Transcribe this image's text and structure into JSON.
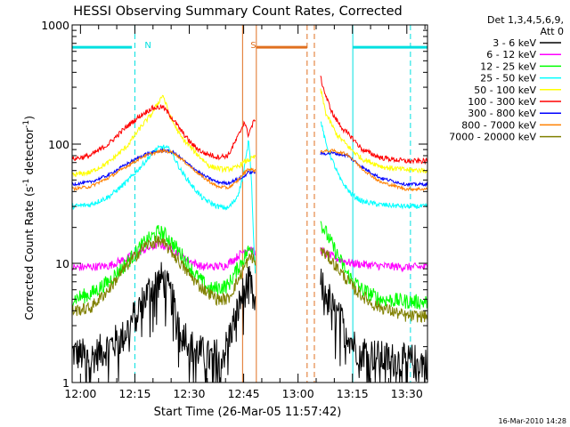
{
  "chart_data": {
    "type": "line",
    "title": "HESSI Observing Summary Count Rates, Corrected",
    "xlabel": "Start Time (26-Mar-05 11:57:42)",
    "ylabel_main": "Corrected Count Rate (s",
    "ylabel_sup1": "-1",
    "ylabel_mid": " detector",
    "ylabel_sup2": "-1",
    "ylabel_end": ")",
    "footer": "16-Mar-2010 14:28",
    "legend_header": [
      "Det 1,3,4,5,6,9,",
      "Att 0"
    ],
    "x_range_min": [
      0,
      98
    ],
    "y_range": [
      1,
      1000
    ],
    "y_scale": "log",
    "x_ticks": [
      {
        "t": 2.3,
        "label": "12:00"
      },
      {
        "t": 17.3,
        "label": "12:15"
      },
      {
        "t": 32.3,
        "label": "12:30"
      },
      {
        "t": 47.3,
        "label": "12:45"
      },
      {
        "t": 62.3,
        "label": "13:00"
      },
      {
        "t": 77.3,
        "label": "13:15"
      },
      {
        "t": 92.3,
        "label": "13:30"
      }
    ],
    "y_ticks": [
      {
        "v": 1,
        "label": "1"
      },
      {
        "v": 10,
        "label": "10"
      },
      {
        "v": 100,
        "label": "100"
      },
      {
        "v": 1000,
        "label": "1000"
      }
    ],
    "data_gap": [
      50.5,
      68.5
    ],
    "series": [
      {
        "name": "3 - 6 keV",
        "color": "#000000",
        "noise": 0.35,
        "points": [
          [
            0,
            1.8
          ],
          [
            5,
            1.6
          ],
          [
            10,
            2.0
          ],
          [
            14,
            2.4
          ],
          [
            18,
            4.0
          ],
          [
            22,
            6.5
          ],
          [
            25,
            7.5
          ],
          [
            27,
            5.5
          ],
          [
            30,
            3.0
          ],
          [
            33,
            2.0
          ],
          [
            38,
            1.6
          ],
          [
            42,
            1.8
          ],
          [
            45,
            3.5
          ],
          [
            47,
            5.5
          ],
          [
            49,
            7.0
          ],
          [
            50.5,
            4.0
          ],
          [
            68.5,
            6.5
          ],
          [
            70,
            6.0
          ],
          [
            72,
            4.0
          ],
          [
            75,
            3.0
          ],
          [
            78,
            2.0
          ],
          [
            85,
            1.6
          ],
          [
            92,
            1.5
          ],
          [
            98,
            1.5
          ]
        ]
      },
      {
        "name": "6 - 12 keV",
        "color": "#ff00ff",
        "noise": 0.08,
        "points": [
          [
            0,
            9.2
          ],
          [
            10,
            9.5
          ],
          [
            15,
            11.0
          ],
          [
            20,
            13.0
          ],
          [
            24,
            14.5
          ],
          [
            27,
            13.5
          ],
          [
            31,
            11.0
          ],
          [
            36,
            9.3
          ],
          [
            42,
            9.5
          ],
          [
            45,
            11.0
          ],
          [
            47,
            12.5
          ],
          [
            49,
            13.5
          ],
          [
            50.5,
            12.0
          ],
          [
            68.5,
            13.0
          ],
          [
            70,
            12.0
          ],
          [
            73,
            11.0
          ],
          [
            77,
            10.0
          ],
          [
            85,
            9.5
          ],
          [
            92,
            9.3
          ],
          [
            98,
            9.3
          ]
        ]
      },
      {
        "name": "12 - 25 keV",
        "color": "#00ff00",
        "noise": 0.15,
        "points": [
          [
            0,
            5.0
          ],
          [
            5,
            5.5
          ],
          [
            10,
            7.0
          ],
          [
            15,
            10.0
          ],
          [
            20,
            15.0
          ],
          [
            24,
            18.5
          ],
          [
            26,
            17.0
          ],
          [
            30,
            12.0
          ],
          [
            34,
            8.0
          ],
          [
            38,
            6.0
          ],
          [
            43,
            6.5
          ],
          [
            46,
            9.5
          ],
          [
            48,
            12.0
          ],
          [
            49.5,
            14.0
          ],
          [
            50.5,
            11.0
          ],
          [
            68.5,
            22.0
          ],
          [
            70,
            18.0
          ],
          [
            73,
            12.0
          ],
          [
            76,
            8.0
          ],
          [
            80,
            6.0
          ],
          [
            85,
            5.0
          ],
          [
            92,
            4.8
          ],
          [
            98,
            4.7
          ]
        ]
      },
      {
        "name": "25 - 50 keV",
        "color": "#00ffff",
        "noise": 0.05,
        "points": [
          [
            0,
            30
          ],
          [
            5,
            31
          ],
          [
            10,
            36
          ],
          [
            15,
            48
          ],
          [
            19,
            65
          ],
          [
            23,
            90
          ],
          [
            25,
            95
          ],
          [
            27,
            90
          ],
          [
            30,
            60
          ],
          [
            33,
            45
          ],
          [
            36,
            35
          ],
          [
            40,
            30
          ],
          [
            43,
            29
          ],
          [
            45,
            34
          ],
          [
            46,
            40
          ],
          [
            47,
            52
          ],
          [
            48,
            78
          ],
          [
            48.7,
            110
          ],
          [
            49.4,
            55
          ],
          [
            50.0,
            18
          ],
          [
            50.5,
            8
          ],
          [
            68.5,
            160
          ],
          [
            70,
            100
          ],
          [
            72,
            70
          ],
          [
            74,
            50
          ],
          [
            77,
            38
          ],
          [
            80,
            33
          ],
          [
            85,
            31
          ],
          [
            92,
            30
          ],
          [
            98,
            30
          ]
        ]
      },
      {
        "name": "50 - 100 keV",
        "color": "#ffff00",
        "noise": 0.05,
        "points": [
          [
            0,
            55
          ],
          [
            5,
            58
          ],
          [
            10,
            70
          ],
          [
            15,
            95
          ],
          [
            19,
            140
          ],
          [
            22,
            180
          ],
          [
            25,
            260
          ],
          [
            27,
            170
          ],
          [
            30,
            115
          ],
          [
            34,
            85
          ],
          [
            38,
            65
          ],
          [
            42,
            61
          ],
          [
            45,
            63
          ],
          [
            48,
            72
          ],
          [
            50.5,
            78
          ],
          [
            68.5,
            290
          ],
          [
            70,
            180
          ],
          [
            73,
            120
          ],
          [
            77,
            90
          ],
          [
            80,
            75
          ],
          [
            86,
            64
          ],
          [
            92,
            61
          ],
          [
            98,
            60
          ]
        ]
      },
      {
        "name": "100 - 300 keV",
        "color": "#ff0000",
        "noise": 0.05,
        "points": [
          [
            0,
            75
          ],
          [
            5,
            80
          ],
          [
            10,
            100
          ],
          [
            15,
            140
          ],
          [
            19,
            175
          ],
          [
            22,
            200
          ],
          [
            25,
            205
          ],
          [
            27,
            175
          ],
          [
            30,
            130
          ],
          [
            33,
            100
          ],
          [
            36,
            85
          ],
          [
            40,
            78
          ],
          [
            43,
            80
          ],
          [
            46,
            120
          ],
          [
            47.5,
            155
          ],
          [
            48.5,
            120
          ],
          [
            49.5,
            140
          ],
          [
            50.5,
            165
          ],
          [
            68.5,
            360
          ],
          [
            70,
            250
          ],
          [
            72,
            175
          ],
          [
            75,
            130
          ],
          [
            77,
            115
          ],
          [
            80,
            90
          ],
          [
            85,
            77
          ],
          [
            92,
            72
          ],
          [
            98,
            72
          ]
        ]
      },
      {
        "name": "300 - 800 keV",
        "color": "#0000ff",
        "noise": 0.03,
        "points": [
          [
            0,
            46
          ],
          [
            5,
            48
          ],
          [
            10,
            55
          ],
          [
            15,
            68
          ],
          [
            20,
            82
          ],
          [
            25,
            89
          ],
          [
            28,
            85
          ],
          [
            32,
            68
          ],
          [
            36,
            55
          ],
          [
            40,
            48
          ],
          [
            43,
            47
          ],
          [
            45,
            50
          ],
          [
            47,
            52
          ],
          [
            48.5,
            58
          ],
          [
            50.5,
            58
          ],
          [
            68.5,
            83
          ],
          [
            72,
            84
          ],
          [
            76,
            80
          ],
          [
            80,
            64
          ],
          [
            85,
            52
          ],
          [
            92,
            46
          ],
          [
            98,
            46
          ]
        ]
      },
      {
        "name": "800 - 7000 keV",
        "color": "#ff8000",
        "noise": 0.03,
        "points": [
          [
            0,
            42
          ],
          [
            5,
            44
          ],
          [
            10,
            52
          ],
          [
            15,
            65
          ],
          [
            20,
            80
          ],
          [
            25,
            88
          ],
          [
            28,
            85
          ],
          [
            32,
            67
          ],
          [
            36,
            53
          ],
          [
            40,
            44
          ],
          [
            43,
            43
          ],
          [
            45,
            47
          ],
          [
            47,
            55
          ],
          [
            48.5,
            62
          ],
          [
            50.5,
            60
          ],
          [
            68.5,
            87
          ],
          [
            72,
            88
          ],
          [
            76,
            82
          ],
          [
            80,
            62
          ],
          [
            85,
            48
          ],
          [
            92,
            42
          ],
          [
            98,
            42
          ]
        ]
      },
      {
        "name": "7000 - 20000 keV",
        "color": "#808000",
        "noise": 0.12,
        "points": [
          [
            0,
            4.0
          ],
          [
            5,
            4.2
          ],
          [
            10,
            6.0
          ],
          [
            15,
            9.5
          ],
          [
            20,
            14.0
          ],
          [
            24,
            15.5
          ],
          [
            27,
            13.0
          ],
          [
            31,
            9.0
          ],
          [
            35,
            6.5
          ],
          [
            40,
            5.0
          ],
          [
            43,
            5.0
          ],
          [
            46,
            7.5
          ],
          [
            48,
            10.0
          ],
          [
            49.5,
            11.5
          ],
          [
            50.5,
            10.0
          ],
          [
            68.5,
            13.0
          ],
          [
            71,
            11.0
          ],
          [
            74,
            8.5
          ],
          [
            78,
            6.0
          ],
          [
            83,
            4.5
          ],
          [
            92,
            3.6
          ],
          [
            98,
            3.6
          ]
        ]
      }
    ],
    "annotations": [
      {
        "label": "N",
        "color": "#00e0e0",
        "segments": [
          [
            0,
            16.5
          ],
          [
            77.5,
            98
          ]
        ],
        "level": 650,
        "dashed_lines": [
          17.3,
          93.3
        ],
        "solid_lines": [
          77.4
        ]
      },
      {
        "label": "S",
        "color": "#e07020",
        "segments": [
          [
            50.7,
            64.8
          ]
        ],
        "level": 650,
        "dashed_lines": [
          64.8,
          66.8
        ],
        "solid_lines": [
          47.0,
          50.8
        ]
      }
    ]
  }
}
